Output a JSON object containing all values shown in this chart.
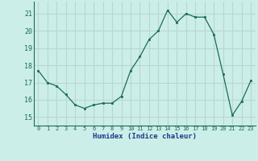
{
  "x": [
    0,
    1,
    2,
    3,
    4,
    5,
    6,
    7,
    8,
    9,
    10,
    11,
    12,
    13,
    14,
    15,
    16,
    17,
    18,
    19,
    20,
    21,
    22,
    23
  ],
  "y": [
    17.7,
    17.0,
    16.8,
    16.3,
    15.7,
    15.5,
    15.7,
    15.8,
    15.8,
    16.2,
    17.7,
    18.5,
    19.5,
    20.0,
    21.2,
    20.5,
    21.0,
    20.8,
    20.8,
    19.8,
    17.5,
    15.1,
    15.9,
    17.1
  ],
  "xlabel": "Humidex (Indice chaleur)",
  "bg_color": "#cceee8",
  "line_color": "#1a6b5a",
  "grid_color": "#b8d8d2",
  "ylim": [
    14.5,
    21.7
  ],
  "xlim": [
    -0.5,
    23.5
  ],
  "yticks": [
    15,
    16,
    17,
    18,
    19,
    20,
    21
  ],
  "xticks": [
    0,
    1,
    2,
    3,
    4,
    5,
    6,
    7,
    8,
    9,
    10,
    11,
    12,
    13,
    14,
    15,
    16,
    17,
    18,
    19,
    20,
    21,
    22,
    23
  ],
  "tick_color": "#1a6b5a",
  "xlabel_color": "#1a3a8a"
}
